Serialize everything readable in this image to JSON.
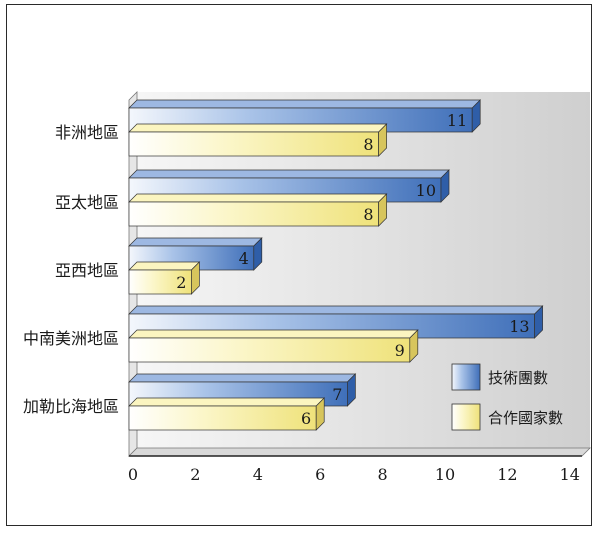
{
  "chart_data": {
    "type": "bar",
    "orientation": "horizontal",
    "categories": [
      "非洲地區",
      "亞太地區",
      "亞西地區",
      "中南美洲地區",
      "加勒比海地區"
    ],
    "series": [
      {
        "name": "技術團數",
        "values": [
          11,
          10,
          4,
          13,
          7
        ],
        "color": "#4f7fc6"
      },
      {
        "name": "合作國家數",
        "values": [
          8,
          8,
          2,
          9,
          6
        ],
        "color": "#f3ec97"
      }
    ],
    "x_ticks": [
      "0",
      "2",
      "4",
      "6",
      "8",
      "10",
      "12",
      "14"
    ],
    "xlim": [
      0,
      14
    ],
    "title": "",
    "xlabel": "",
    "ylabel": "",
    "legend_position": "bottom-right",
    "grid": false
  }
}
